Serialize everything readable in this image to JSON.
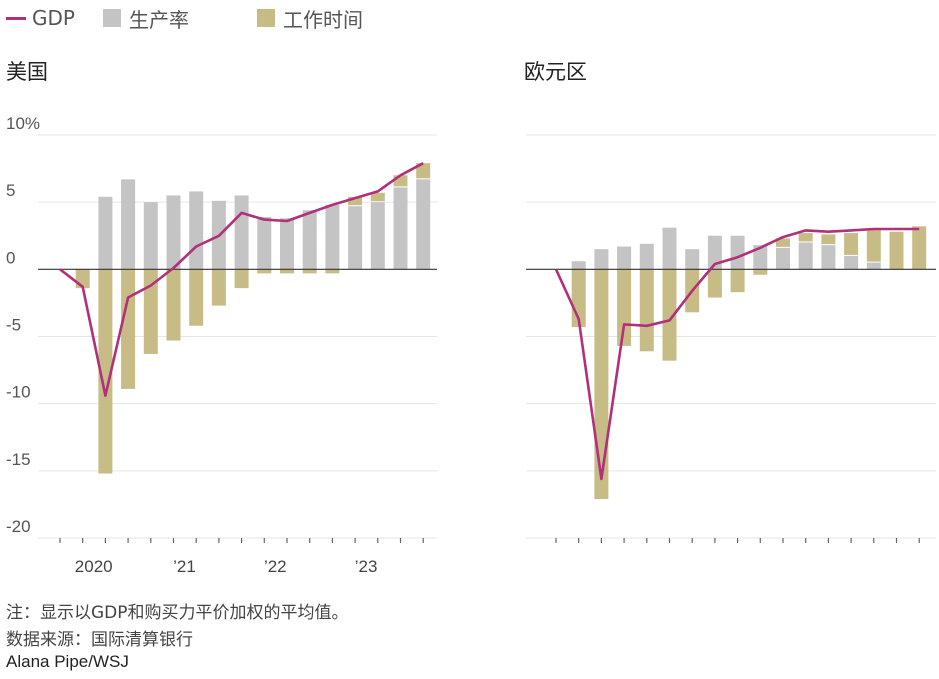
{
  "legend": {
    "gdp": "GDP",
    "productivity": "生产率",
    "hours": "工作时间"
  },
  "colors": {
    "gdp": "#b0307a",
    "productivity": "#c4c4c4",
    "hours": "#c8bc86",
    "axis": "#333333",
    "grid": "#e6e6e6"
  },
  "chart_data": [
    {
      "type": "bar",
      "title": "美国",
      "ylim": [
        -20,
        10
      ],
      "ytick_labels": [
        "10%",
        "5",
        "0",
        "-5",
        "-10",
        "-15",
        "-20"
      ],
      "yticks": [
        10,
        5,
        0,
        -5,
        -10,
        -15,
        -20
      ],
      "xtick_labels": [
        "2020",
        "’21",
        "’22",
        "’23"
      ],
      "xtick_label_positions": [
        1,
        5,
        9,
        13
      ],
      "categories": [
        "2019Q4",
        "2020Q1",
        "2020Q2",
        "2020Q3",
        "2020Q4",
        "2021Q1",
        "2021Q2",
        "2021Q3",
        "2021Q4",
        "2022Q1",
        "2022Q2",
        "2022Q3",
        "2022Q4",
        "2023Q1",
        "2023Q2",
        "2023Q3",
        "2023Q4"
      ],
      "series": [
        {
          "name": "生产率",
          "values": [
            0,
            0,
            5.4,
            6.7,
            5.0,
            5.5,
            5.8,
            5.1,
            5.5,
            3.9,
            3.8,
            4.4,
            4.8,
            4.7,
            5.0,
            6.1,
            6.7
          ]
        },
        {
          "name": "工作时间",
          "values": [
            0,
            -1.4,
            -15.2,
            -8.9,
            -6.3,
            -5.3,
            -4.2,
            -2.7,
            -1.4,
            -0.3,
            -0.3,
            -0.3,
            -0.3,
            0.7,
            0.7,
            0.9,
            1.2
          ]
        },
        {
          "name": "GDP",
          "values": [
            0,
            -1.3,
            -9.4,
            -2.1,
            -1.2,
            0.1,
            1.7,
            2.5,
            4.2,
            3.7,
            3.6,
            4.2,
            4.8,
            5.3,
            5.8,
            7.0,
            7.9
          ]
        }
      ]
    },
    {
      "type": "bar",
      "title": "欧元区",
      "ylim": [
        -20,
        10
      ],
      "yticks": [
        10,
        5,
        0,
        -5,
        -10,
        -15,
        -20
      ],
      "categories": [
        "2019Q4",
        "2020Q1",
        "2020Q2",
        "2020Q3",
        "2020Q4",
        "2021Q1",
        "2021Q2",
        "2021Q3",
        "2021Q4",
        "2022Q1",
        "2022Q2",
        "2022Q3",
        "2022Q4",
        "2023Q1",
        "2023Q2",
        "2023Q3",
        "2023Q4"
      ],
      "series": [
        {
          "name": "生产率",
          "values": [
            0,
            0.6,
            1.5,
            1.7,
            1.9,
            3.1,
            1.5,
            2.5,
            2.5,
            1.8,
            1.6,
            2.0,
            1.8,
            1.0,
            0.5,
            0,
            0
          ]
        },
        {
          "name": "工作时间",
          "values": [
            0,
            -4.3,
            -17.1,
            -5.7,
            -6.1,
            -6.8,
            -3.2,
            -2.1,
            -1.7,
            -0.4,
            0.7,
            0.7,
            0.8,
            1.7,
            2.5,
            2.8,
            3.2
          ]
        },
        {
          "name": "GDP",
          "values": [
            0,
            -3.7,
            -15.6,
            -4.1,
            -4.2,
            -3.8,
            -1.6,
            0.4,
            0.9,
            1.6,
            2.4,
            2.9,
            2.8,
            2.9,
            3.0,
            3.0,
            3.0
          ]
        }
      ]
    }
  ],
  "footer": {
    "note": "注：显示以GDP和购买力平价加权的平均值。",
    "source": "数据来源：国际清算银行",
    "credit": "Alana Pipe/WSJ"
  }
}
